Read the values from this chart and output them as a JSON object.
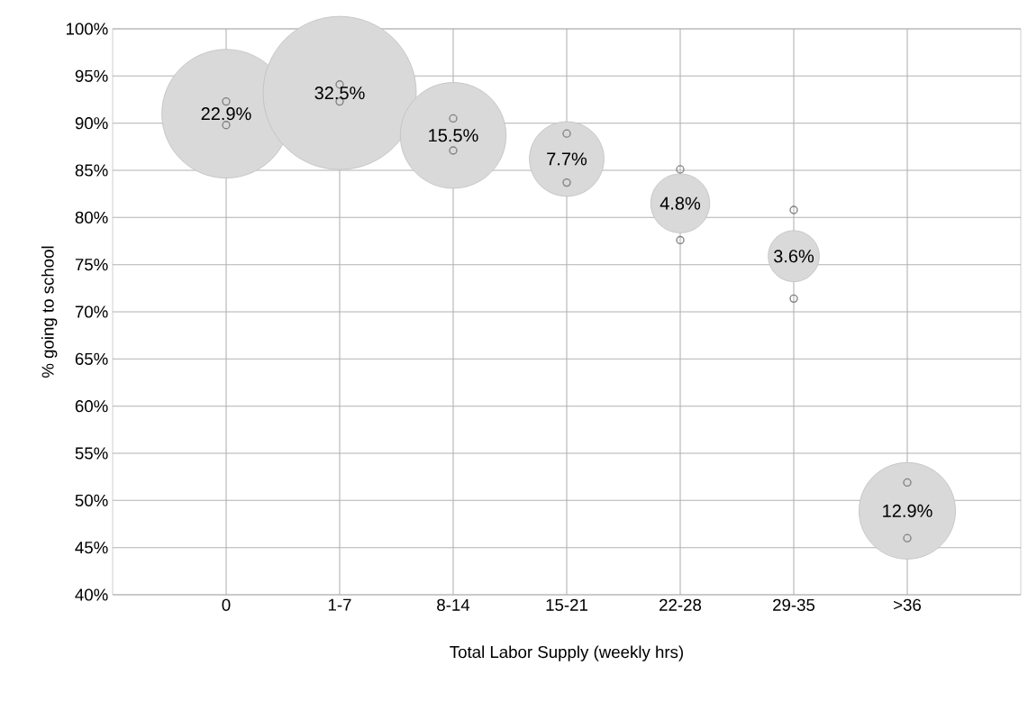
{
  "chart_data": {
    "type": "bubble",
    "xlabel": "Total Labor Supply (weekly hrs)",
    "ylabel": "% going to school",
    "categories": [
      "0",
      "1-7",
      "8-14",
      "15-21",
      "22-28",
      "29-35",
      ">36"
    ],
    "series": [
      {
        "values": [
          91.0,
          93.2,
          88.7,
          86.2,
          81.5,
          75.9,
          48.9
        ],
        "sizes": [
          0.705,
          1,
          0.477,
          0.237,
          0.148,
          0.111,
          0.397
        ],
        "color": "#d9d9d9"
      },
      {
        "type": "scatter",
        "marker": "circle",
        "color": "#808080",
        "x": [
          "0",
          "0",
          "1-7",
          "1-7",
          "8-14",
          "8-14",
          "15-21",
          "15-21",
          "22-28",
          "22-28",
          "29-35",
          "29-35",
          ">36",
          ">36"
        ],
        "values": [
          89.8,
          92.3,
          92.3,
          94.1,
          87.1,
          90.5,
          83.7,
          88.9,
          77.6,
          85.1,
          71.4,
          80.8,
          46.0,
          51.9
        ]
      }
    ],
    "annotations": [
      {
        "text": "22.9%",
        "x": "0",
        "y": 91.0
      },
      {
        "text": "32.5%",
        "x": "1-7",
        "y": 93.2
      },
      {
        "text": "15.5%",
        "x": "8-14",
        "y": 88.7
      },
      {
        "text": "7.7%",
        "x": "15-21",
        "y": 86.2
      },
      {
        "text": "4.8%",
        "x": "22-28",
        "y": 81.5
      },
      {
        "text": "3.6%",
        "x": "29-35",
        "y": 75.9
      },
      {
        "text": "12.9%",
        "x": ">36",
        "y": 48.9
      }
    ],
    "ylim": [
      40,
      100
    ],
    "yticks": [
      {
        "value": 40,
        "label": "40%"
      },
      {
        "value": 45,
        "label": "45%"
      },
      {
        "value": 50,
        "label": "50%"
      },
      {
        "value": 55,
        "label": "55%"
      },
      {
        "value": 60,
        "label": "60%"
      },
      {
        "value": 65,
        "label": "65%"
      },
      {
        "value": 70,
        "label": "70%"
      },
      {
        "value": 75,
        "label": "75%"
      },
      {
        "value": 80,
        "label": "80%"
      },
      {
        "value": 85,
        "label": "85%"
      },
      {
        "value": 90,
        "label": "90%"
      },
      {
        "value": 95,
        "label": "95%"
      },
      {
        "value": 100,
        "label": "100%"
      }
    ],
    "grid": true
  }
}
